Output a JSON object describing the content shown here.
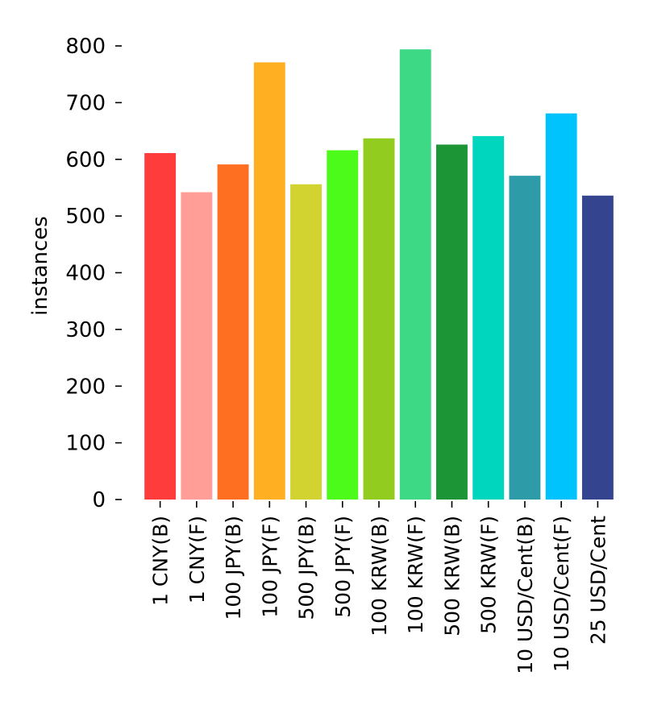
{
  "chart_data": {
    "type": "bar",
    "title": "",
    "xlabel": "",
    "ylabel": "instances",
    "ylim": [
      0,
      820
    ],
    "yticks": [
      0,
      100,
      200,
      300,
      400,
      500,
      600,
      700,
      800
    ],
    "grid": false,
    "categories": [
      "1 CNY(B)",
      "1 CNY(F)",
      "100 JPY(B)",
      "100 JPY(F)",
      "500 JPY(B)",
      "500 JPY(F)",
      "100 KRW(B)",
      "100 KRW(F)",
      "500 KRW(B)",
      "500 KRW(F)",
      "10 USD/Cent(B)",
      "10 USD/Cent(F)",
      "25 USD/Cent"
    ],
    "values": [
      611,
      542,
      591,
      771,
      556,
      616,
      637,
      794,
      626,
      641,
      571,
      681,
      536
    ],
    "colors": [
      "#ff3c3c",
      "#ff9e96",
      "#ff6f22",
      "#ffaf22",
      "#d2d231",
      "#4dfb1b",
      "#92cc1e",
      "#3ed985",
      "#1b9536",
      "#00d6be",
      "#2e9ca8",
      "#00c3fd",
      "#35448f"
    ]
  }
}
